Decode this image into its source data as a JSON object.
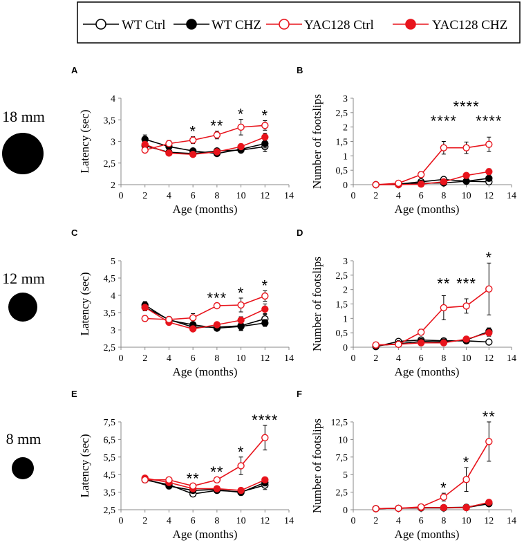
{
  "legend": {
    "entries": [
      {
        "label": "WT Ctrl",
        "color": "#000000",
        "filled": false
      },
      {
        "label": "WT CHZ",
        "color": "#000000",
        "filled": true
      },
      {
        "label": "YAC128 Ctrl",
        "color": "#e8141c",
        "filled": false
      },
      {
        "label": "YAC128 CHZ",
        "color": "#e8141c",
        "filled": true
      }
    ]
  },
  "rows": [
    {
      "beam_label": "18 mm"
    },
    {
      "beam_label": "12 mm"
    },
    {
      "beam_label": "8 mm"
    }
  ],
  "chart_data": [
    {
      "panel": "A",
      "type": "line",
      "xlabel": "Age (months)",
      "ylabel": "Latency (sec)",
      "xlim": [
        0,
        14
      ],
      "xticks": [
        0,
        2,
        4,
        6,
        8,
        10,
        12,
        14
      ],
      "ylim": [
        2,
        4
      ],
      "yticks": [
        2,
        2.5,
        3,
        3.5,
        4
      ],
      "ytick_labels": [
        "2",
        "2,5",
        "3",
        "3,5",
        "4"
      ],
      "x": [
        2,
        4,
        6,
        8,
        10,
        12
      ],
      "series": [
        {
          "name": "WT Ctrl",
          "values": [
            2.9,
            2.75,
            2.72,
            2.78,
            2.8,
            2.88
          ],
          "err": [
            0.08,
            0.05,
            0.05,
            0.05,
            0.06,
            0.12
          ]
        },
        {
          "name": "WT CHZ",
          "values": [
            3.05,
            2.88,
            2.78,
            2.72,
            2.82,
            2.95
          ],
          "err": [
            0.1,
            0.06,
            0.05,
            0.04,
            0.06,
            0.1
          ]
        },
        {
          "name": "YAC128 Ctrl",
          "values": [
            2.8,
            2.95,
            3.03,
            3.15,
            3.33,
            3.37
          ],
          "err": [
            0.05,
            0.07,
            0.08,
            0.09,
            0.18,
            0.11
          ]
        },
        {
          "name": "YAC128 CHZ",
          "values": [
            2.93,
            2.73,
            2.7,
            2.76,
            2.88,
            3.1
          ],
          "err": [
            0.07,
            0.05,
            0.05,
            0.05,
            0.06,
            0.09
          ]
        }
      ],
      "annotations": [
        {
          "x": 6,
          "text": "*"
        },
        {
          "x": 8,
          "text": "**"
        },
        {
          "x": 10,
          "text": "*"
        },
        {
          "x": 12,
          "text": "*"
        }
      ]
    },
    {
      "panel": "B",
      "type": "line",
      "xlabel": "Age (months)",
      "ylabel": "Number of footslips",
      "xlim": [
        0,
        14
      ],
      "xticks": [
        0,
        2,
        4,
        6,
        8,
        10,
        12,
        14
      ],
      "ylim": [
        0,
        3
      ],
      "yticks": [
        0,
        0.5,
        1,
        1.5,
        2,
        2.5,
        3
      ],
      "ytick_labels": [
        "0",
        "0,5",
        "1",
        "1,5",
        "2",
        "2,5",
        "3"
      ],
      "x": [
        2,
        4,
        6,
        8,
        10,
        12
      ],
      "series": [
        {
          "name": "WT Ctrl",
          "values": [
            0.0,
            0.02,
            0.1,
            0.18,
            0.12,
            0.1
          ],
          "err": [
            0.0,
            0.02,
            0.05,
            0.06,
            0.05,
            0.05
          ]
        },
        {
          "name": "WT CHZ",
          "values": [
            0.0,
            0.0,
            0.05,
            0.06,
            0.12,
            0.22
          ],
          "err": [
            0.0,
            0.0,
            0.03,
            0.04,
            0.06,
            0.08
          ]
        },
        {
          "name": "YAC128 Ctrl",
          "values": [
            0.0,
            0.05,
            0.35,
            1.28,
            1.28,
            1.4
          ],
          "err": [
            0.0,
            0.04,
            0.1,
            0.22,
            0.2,
            0.25
          ]
        },
        {
          "name": "YAC128 CHZ",
          "values": [
            0.0,
            0.0,
            0.02,
            0.1,
            0.32,
            0.45
          ],
          "err": [
            0.0,
            0.0,
            0.02,
            0.05,
            0.08,
            0.1
          ]
        }
      ],
      "annotations": [
        {
          "x": 8,
          "text": "****",
          "level": 2.22
        },
        {
          "x": 10,
          "text": "****",
          "level": 2.72
        },
        {
          "x": 12,
          "text": "****",
          "level": 2.22
        }
      ]
    },
    {
      "panel": "C",
      "type": "line",
      "xlabel": "Age (months)",
      "ylabel": "Latency (sec)",
      "xlim": [
        0,
        14
      ],
      "xticks": [
        0,
        2,
        4,
        6,
        8,
        10,
        12,
        14
      ],
      "ylim": [
        2.5,
        5
      ],
      "yticks": [
        2.5,
        3,
        3.5,
        4,
        4.5,
        5
      ],
      "ytick_labels": [
        "2,5",
        "3",
        "3,5",
        "4",
        "4,5",
        "5"
      ],
      "x": [
        2,
        4,
        6,
        8,
        10,
        12
      ],
      "series": [
        {
          "name": "WT Ctrl",
          "values": [
            3.65,
            3.3,
            3.08,
            3.08,
            3.12,
            3.32
          ],
          "err": [
            0.1,
            0.08,
            0.08,
            0.06,
            0.12,
            0.15
          ]
        },
        {
          "name": "WT CHZ",
          "values": [
            3.72,
            3.28,
            3.15,
            3.05,
            3.1,
            3.2
          ],
          "err": [
            0.1,
            0.08,
            0.08,
            0.06,
            0.12,
            0.1
          ]
        },
        {
          "name": "YAC128 Ctrl",
          "values": [
            3.33,
            3.3,
            3.35,
            3.7,
            3.72,
            3.98
          ],
          "err": [
            0.08,
            0.08,
            0.12,
            0.07,
            0.2,
            0.15
          ]
        },
        {
          "name": "YAC128 CHZ",
          "values": [
            3.65,
            3.22,
            3.03,
            3.15,
            3.28,
            3.6
          ],
          "err": [
            0.1,
            0.06,
            0.06,
            0.06,
            0.1,
            0.15
          ]
        }
      ],
      "annotations": [
        {
          "x": 8,
          "text": "***"
        },
        {
          "x": 10,
          "text": "*"
        },
        {
          "x": 12,
          "text": "*"
        }
      ]
    },
    {
      "panel": "D",
      "type": "line",
      "xlabel": "Age (months)",
      "ylabel": "Number of footslips",
      "xlim": [
        0,
        14
      ],
      "xticks": [
        0,
        2,
        4,
        6,
        8,
        10,
        12,
        14
      ],
      "ylim": [
        0,
        3
      ],
      "yticks": [
        0,
        0.5,
        1,
        1.5,
        2,
        2.5,
        3
      ],
      "ytick_labels": [
        "0",
        "0,5",
        "1",
        "1,5",
        "2",
        "2,5",
        "3"
      ],
      "x": [
        2,
        4,
        6,
        8,
        10,
        12
      ],
      "series": [
        {
          "name": "WT Ctrl",
          "values": [
            0.02,
            0.2,
            0.25,
            0.22,
            0.22,
            0.18
          ],
          "err": [
            0.02,
            0.05,
            0.06,
            0.05,
            0.06,
            0.06
          ]
        },
        {
          "name": "WT CHZ",
          "values": [
            0.05,
            0.12,
            0.2,
            0.18,
            0.25,
            0.55
          ],
          "err": [
            0.03,
            0.05,
            0.06,
            0.05,
            0.06,
            0.12
          ]
        },
        {
          "name": "YAC128 Ctrl",
          "values": [
            0.08,
            0.1,
            0.52,
            1.37,
            1.43,
            2.02
          ],
          "err": [
            0.04,
            0.05,
            0.1,
            0.42,
            0.25,
            0.9
          ]
        },
        {
          "name": "YAC128 CHZ",
          "values": [
            0.07,
            0.1,
            0.15,
            0.15,
            0.28,
            0.5
          ],
          "err": [
            0.04,
            0.05,
            0.05,
            0.05,
            0.08,
            0.12
          ]
        }
      ],
      "annotations": [
        {
          "x": 8,
          "text": "**",
          "level": 2.22
        },
        {
          "x": 10,
          "text": "***",
          "level": 2.22
        },
        {
          "x": 12,
          "text": "*",
          "level": 3.12
        }
      ]
    },
    {
      "panel": "E",
      "type": "line",
      "xlabel": "Age (months)",
      "ylabel": "Latency (sec)",
      "xlim": [
        0,
        14
      ],
      "xticks": [
        0,
        2,
        4,
        6,
        8,
        10,
        12,
        14
      ],
      "ylim": [
        2.5,
        7.5
      ],
      "yticks": [
        2.5,
        3.5,
        4.5,
        5.5,
        6.5,
        7.5
      ],
      "ytick_labels": [
        "2,5",
        "3,5",
        "4,5",
        "5,5",
        "6,5",
        "7,5"
      ],
      "x": [
        2,
        4,
        6,
        8,
        10,
        12
      ],
      "series": [
        {
          "name": "WT Ctrl",
          "values": [
            4.2,
            3.92,
            3.4,
            3.6,
            3.52,
            3.9
          ],
          "err": [
            0.12,
            0.1,
            0.1,
            0.1,
            0.12,
            0.25
          ]
        },
        {
          "name": "WT CHZ",
          "values": [
            4.25,
            3.85,
            3.6,
            3.65,
            3.48,
            4.05
          ],
          "err": [
            0.12,
            0.1,
            0.1,
            0.1,
            0.12,
            0.2
          ]
        },
        {
          "name": "YAC128 Ctrl",
          "values": [
            4.2,
            4.2,
            3.85,
            4.2,
            5.0,
            6.6
          ],
          "err": [
            0.12,
            0.12,
            0.12,
            0.15,
            0.5,
            0.7
          ]
        },
        {
          "name": "YAC128 CHZ",
          "values": [
            4.3,
            4.05,
            3.7,
            3.7,
            3.6,
            4.2
          ],
          "err": [
            0.12,
            0.1,
            0.1,
            0.1,
            0.1,
            0.15
          ]
        }
      ],
      "annotations": [
        {
          "x": 6,
          "text": "**"
        },
        {
          "x": 8,
          "text": "**"
        },
        {
          "x": 10,
          "text": "*"
        },
        {
          "x": 12,
          "text": "****"
        }
      ]
    },
    {
      "panel": "F",
      "type": "line",
      "xlabel": "Age (months)",
      "ylabel": "Number of footslips",
      "xlim": [
        0,
        14
      ],
      "xticks": [
        0,
        2,
        4,
        6,
        8,
        10,
        12,
        14
      ],
      "ylim": [
        0,
        12.5
      ],
      "yticks": [
        0,
        2.5,
        5,
        7.5,
        10,
        12.5
      ],
      "ytick_labels": [
        "0",
        "2,5",
        "5",
        "7,5",
        "10",
        "12,5"
      ],
      "x": [
        2,
        4,
        6,
        8,
        10,
        12
      ],
      "series": [
        {
          "name": "WT Ctrl",
          "values": [
            0.15,
            0.2,
            0.25,
            0.25,
            0.3,
            0.85
          ],
          "err": [
            0.05,
            0.05,
            0.05,
            0.05,
            0.08,
            0.2
          ]
        },
        {
          "name": "WT CHZ",
          "values": [
            0.15,
            0.2,
            0.3,
            0.3,
            0.35,
            0.95
          ],
          "err": [
            0.05,
            0.05,
            0.05,
            0.05,
            0.08,
            0.2
          ]
        },
        {
          "name": "YAC128 Ctrl",
          "values": [
            0.15,
            0.2,
            0.4,
            1.8,
            4.3,
            9.7
          ],
          "err": [
            0.05,
            0.08,
            0.15,
            0.55,
            1.7,
            2.8
          ]
        },
        {
          "name": "YAC128 CHZ",
          "values": [
            0.15,
            0.2,
            0.3,
            0.3,
            0.3,
            1.05
          ],
          "err": [
            0.05,
            0.05,
            0.05,
            0.05,
            0.08,
            0.2
          ]
        }
      ],
      "annotations": [
        {
          "x": 8,
          "text": "*"
        },
        {
          "x": 10,
          "text": "*"
        },
        {
          "x": 12,
          "text": "**"
        }
      ]
    }
  ]
}
